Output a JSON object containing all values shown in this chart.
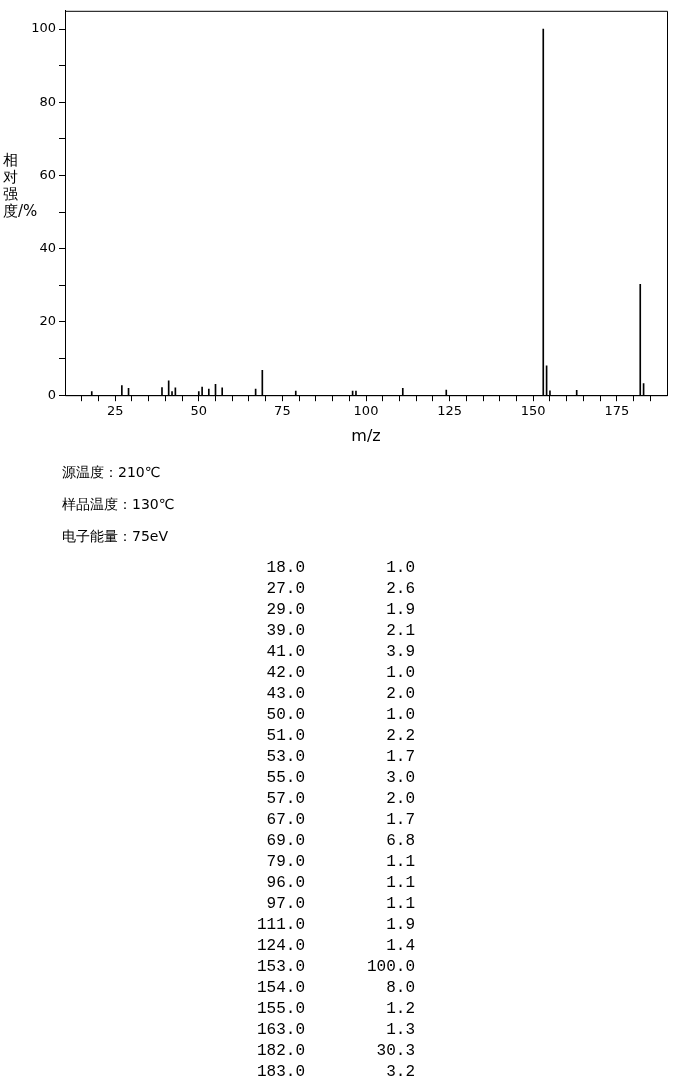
{
  "chart_data": [
    {
      "type": "bar",
      "xlabel": "m/z",
      "ylabel": "相对强度/%",
      "x": [
        18,
        27,
        29,
        39,
        41,
        42,
        43,
        50,
        51,
        53,
        55,
        57,
        67,
        69,
        79,
        96,
        97,
        111,
        124,
        153,
        154,
        155,
        163,
        182,
        183
      ],
      "values": [
        1.0,
        2.6,
        1.9,
        2.1,
        3.9,
        1.0,
        2.0,
        1.0,
        2.2,
        1.7,
        3.0,
        2.0,
        1.7,
        6.8,
        1.1,
        1.1,
        1.1,
        1.9,
        1.4,
        100.0,
        8.0,
        1.2,
        1.3,
        30.3,
        3.2
      ],
      "color": "#000000",
      "xlim": [
        10,
        190
      ],
      "xticks": [
        {
          "value": 15,
          "label": null
        },
        {
          "value": 20,
          "label": null
        },
        25,
        {
          "value": 30,
          "label": null
        },
        {
          "value": 35,
          "label": null
        },
        {
          "value": 40,
          "label": null
        },
        {
          "value": 45,
          "label": null
        },
        50,
        {
          "value": 55,
          "label": null
        },
        {
          "value": 60,
          "label": null
        },
        {
          "value": 65,
          "label": null
        },
        {
          "value": 70,
          "label": null
        },
        75,
        {
          "value": 80,
          "label": null
        },
        {
          "value": 85,
          "label": null
        },
        {
          "value": 90,
          "label": null
        },
        {
          "value": 95,
          "label": null
        },
        100,
        {
          "value": 105,
          "label": null
        },
        {
          "value": 110,
          "label": null
        },
        {
          "value": 115,
          "label": null
        },
        {
          "value": 120,
          "label": null
        },
        125,
        {
          "value": 130,
          "label": null
        },
        {
          "value": 135,
          "label": null
        },
        {
          "value": 140,
          "label": null
        },
        {
          "value": 145,
          "label": null
        },
        150,
        {
          "value": 155,
          "label": null
        },
        {
          "value": 160,
          "label": null
        },
        {
          "value": 165,
          "label": null
        },
        {
          "value": 170,
          "label": null
        },
        175,
        {
          "value": 180,
          "label": null
        },
        {
          "value": 185,
          "label": null
        }
      ],
      "ylim": [
        0,
        105
      ],
      "yticks": [
        0,
        {
          "value": 10,
          "label": null
        },
        20,
        {
          "value": 30,
          "label": null
        },
        40,
        {
          "value": 50,
          "label": null
        },
        60,
        {
          "value": 70,
          "label": null
        },
        80,
        {
          "value": 90,
          "label": null
        },
        100
      ],
      "grid": false,
      "legend": false,
      "annotations": [
        "源温度：210℃",
        "样品温度：130℃",
        "电子能量：75eV"
      ]
    },
    {
      "type": "other",
      "value_labels": [
        "1.0",
        "2.6",
        "1.9",
        "2.1",
        "3.9",
        "1.0",
        "2.0",
        "1.0",
        "2.2",
        "1.7",
        "3.0",
        "2.0",
        "1.7",
        "6.8",
        "1.1",
        "1.1",
        "1.1",
        "1.9",
        "1.4",
        "100.0",
        "8.0",
        "1.2",
        "1.3",
        "30.3",
        "3.2"
      ],
      "categories": [
        "18.0",
        "27.0",
        "29.0",
        "39.0",
        "41.0",
        "42.0",
        "43.0",
        "50.0",
        "51.0",
        "53.0",
        "55.0",
        "57.0",
        "67.0",
        "69.0",
        "79.0",
        "96.0",
        "97.0",
        "111.0",
        "124.0",
        "153.0",
        "154.0",
        "155.0",
        "163.0",
        "182.0",
        "183.0"
      ]
    }
  ]
}
